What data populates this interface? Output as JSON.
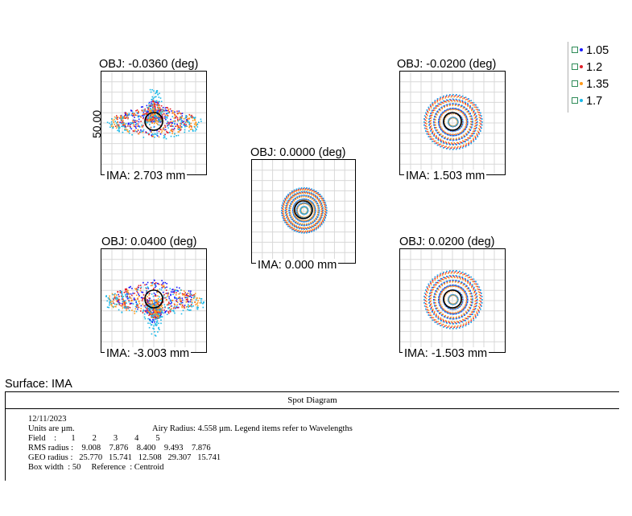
{
  "panels": [
    {
      "id": "p1",
      "obj": "OBJ: -0.0360 (deg)",
      "ima": "IMA: 2.703 mm"
    },
    {
      "id": "p2",
      "obj": "OBJ: -0.0200 (deg)",
      "ima": "IMA: 1.503 mm"
    },
    {
      "id": "p3",
      "obj": "OBJ: 0.0000 (deg)",
      "ima": "IMA: 0.000 mm"
    },
    {
      "id": "p4",
      "obj": "OBJ: 0.0400 (deg)",
      "ima": "IMA: -3.003 mm"
    },
    {
      "id": "p5",
      "obj": "OBJ: 0.0200 (deg)",
      "ima": "IMA: -1.503 mm"
    }
  ],
  "scale_label": "50.00",
  "legend": [
    {
      "label": "1.05",
      "color": "#1a1aff"
    },
    {
      "label": "1.2",
      "color": "#e0202a"
    },
    {
      "label": "1.35",
      "color": "#ff9a1a"
    },
    {
      "label": "1.7",
      "color": "#1ab8e8"
    }
  ],
  "surface_label": "Surface: IMA",
  "info": {
    "title": "Spot Diagram",
    "date": "12/11/2023",
    "units": "Units are µm.",
    "airy": "Airy Radius: 4.558 µm. Legend items refer to Wavelengths",
    "field_line": "Field    :       1        2        3        4        5",
    "rms_line": "RMS radius :    9.008    7.876    8.400    9.493    7.876",
    "geo_line": "GEO radius :   25.770   15.741   12.508   29.307   15.741",
    "box_line": "Box width  : 50     Reference  : Centroid"
  }
}
